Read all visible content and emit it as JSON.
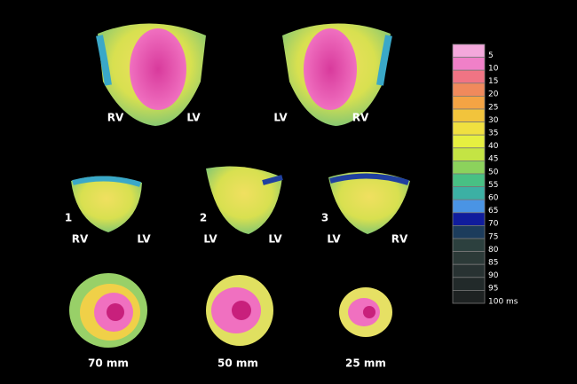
{
  "views": {
    "top": [
      {
        "left": "RV",
        "right": "LV"
      },
      {
        "left": "LV",
        "right": "RV"
      }
    ],
    "middle": [
      {
        "number": "1",
        "left": "RV",
        "right": "LV"
      },
      {
        "number": "2",
        "left": "LV",
        "right": "LV"
      },
      {
        "number": "3",
        "left": "LV",
        "right": "RV"
      }
    ],
    "bottom": [
      "70 mm",
      "50 mm",
      "25 mm"
    ]
  },
  "colorbar": {
    "labels": [
      "5",
      "10",
      "15",
      "20",
      "25",
      "30",
      "35",
      "40",
      "45",
      "50",
      "55",
      "60",
      "65",
      "70",
      "75",
      "80",
      "85",
      "90",
      "95",
      "100 ms"
    ],
    "colors": [
      "#f4a8dc",
      "#f080c8",
      "#f07484",
      "#f08a5c",
      "#f4a444",
      "#f2c43c",
      "#f0e040",
      "#e6f040",
      "#c4e444",
      "#8cd25c",
      "#48c084",
      "#3cb0a4",
      "#4a94e4",
      "#101c9c",
      "#1c3c5c",
      "#2c403e",
      "#2c3a38",
      "#283232",
      "#222a2a",
      "#1e2222"
    ]
  }
}
